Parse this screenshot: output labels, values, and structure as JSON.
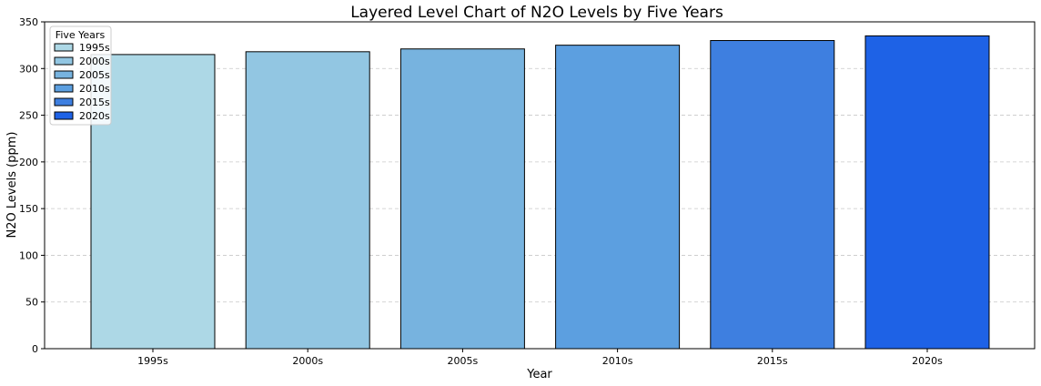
{
  "chart_data": {
    "type": "bar",
    "title": "Layered Level Chart of N2O Levels by Five Years",
    "xlabel": "Year",
    "ylabel": "N2O Levels (ppm)",
    "categories": [
      "1995s",
      "2000s",
      "2005s",
      "2010s",
      "2015s",
      "2020s"
    ],
    "values": [
      315,
      318,
      321,
      325,
      330,
      335
    ],
    "colors": [
      "#add8e6",
      "#92c6e2",
      "#77b3df",
      "#5c9fe0",
      "#3e7fe0",
      "#1e62e6"
    ],
    "ylim": [
      0,
      350
    ],
    "yticks": [
      0,
      50,
      100,
      150,
      200,
      250,
      300,
      350
    ],
    "grid": "y-dashed",
    "legend": {
      "title": "Five Years",
      "placement": "top-left",
      "entries": [
        "1995s",
        "2000s",
        "2005s",
        "2010s",
        "2015s",
        "2020s"
      ]
    }
  }
}
